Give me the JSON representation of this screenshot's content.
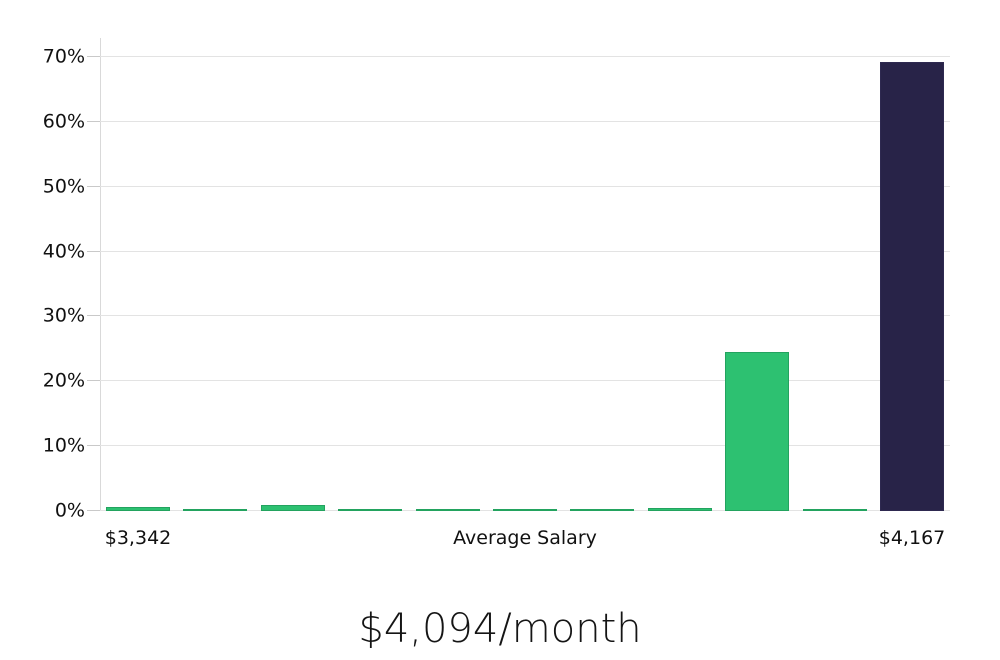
{
  "chart": {
    "title": "$4,094/month",
    "colors": {
      "bar_green": "#2dc171",
      "bar_green_border": "#23a35f",
      "bar_navy": "#282348",
      "bar_navy_border": "#2e2950",
      "gridline": "#e3e3e3",
      "axis_line": "#d9d9d9",
      "tick": "#c9c9c9",
      "text": "#111111"
    }
  },
  "chart_data": {
    "type": "bar",
    "title": "$4,094/month",
    "subtitle": "",
    "xlabel_left": "$3,342",
    "xlabel_center": "Average Salary",
    "xlabel_right": "$4,167",
    "categories": [
      "$3,342",
      "",
      "",
      "",
      "",
      "",
      "",
      "",
      "",
      "",
      "$4,167"
    ],
    "values": [
      0.6,
      0.25,
      1.0,
      0.2,
      0.2,
      0.2,
      0.25,
      0.45,
      24.5,
      0.2,
      69.3
    ],
    "bar_colors": [
      "green",
      "green",
      "green",
      "green",
      "green",
      "green",
      "green",
      "green",
      "green",
      "green",
      "navy"
    ],
    "ylabel": "",
    "ylim": [
      0,
      70
    ],
    "ytick_values": [
      0,
      10,
      20,
      30,
      40,
      50,
      60,
      70
    ],
    "ytick_labels": [
      "0%",
      "10%",
      "20%",
      "30%",
      "40%",
      "50%",
      "60%",
      "70%"
    ],
    "grid": true,
    "legend": false
  }
}
